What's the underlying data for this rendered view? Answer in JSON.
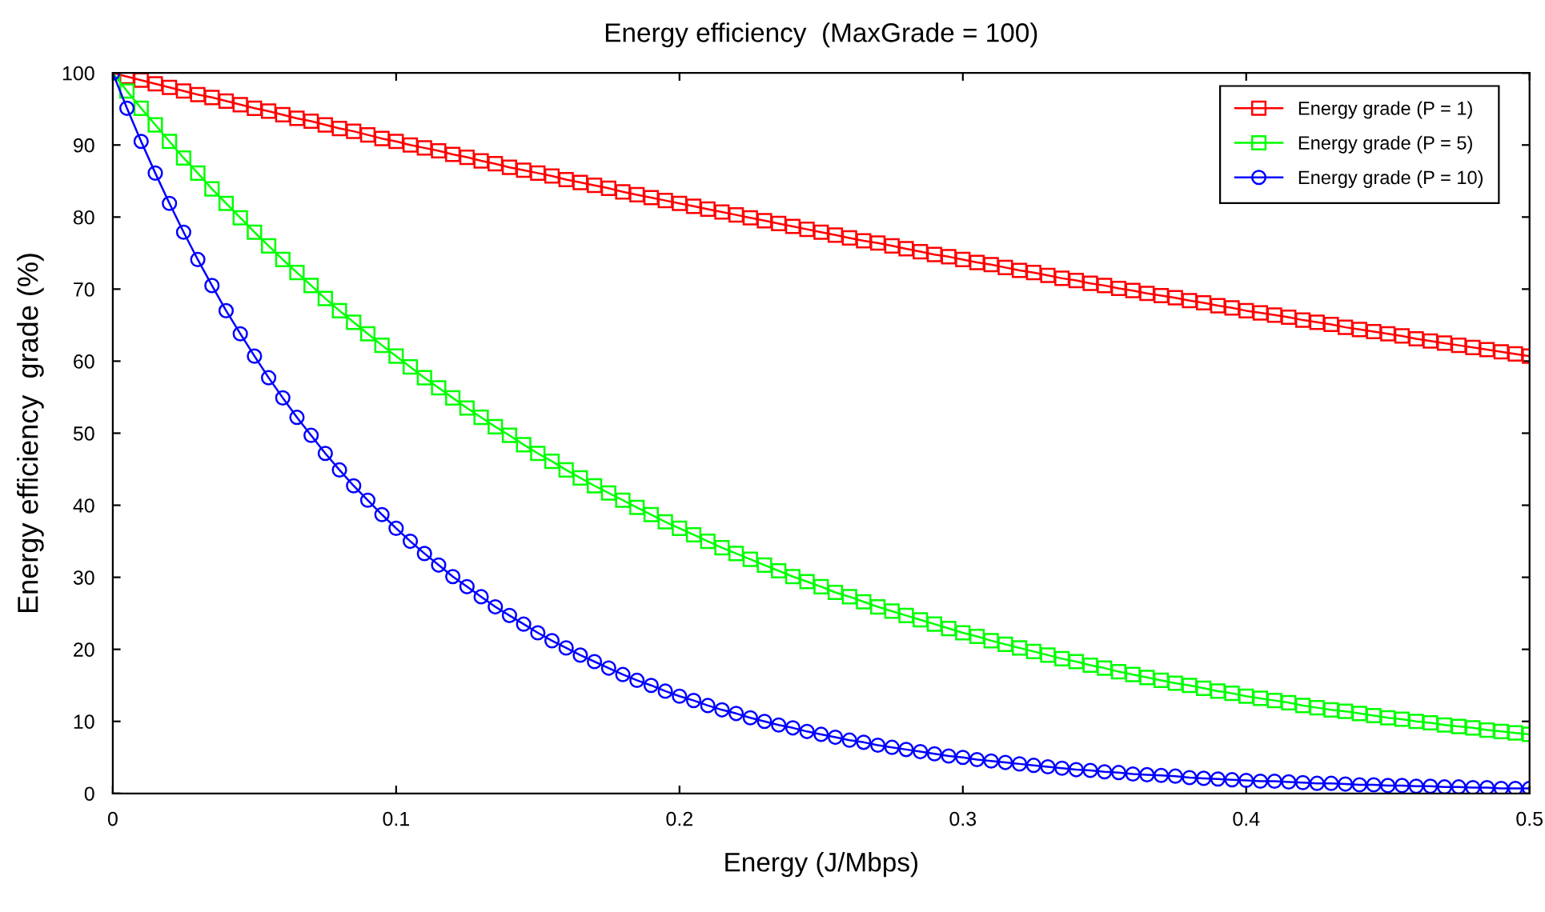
{
  "chart_data": {
    "type": "line",
    "title": "Energy efficiency  (MaxGrade = 100)",
    "xlabel": "Energy (J/Mbps)",
    "ylabel": "Energy efficiency  grade (%)",
    "x": [
      0,
      0.005,
      0.01,
      0.015,
      0.02,
      0.025,
      0.03,
      0.035,
      0.04,
      0.045,
      0.05,
      0.055,
      0.06,
      0.065,
      0.07,
      0.075,
      0.08,
      0.085,
      0.09,
      0.095,
      0.1,
      0.105,
      0.11,
      0.115,
      0.12,
      0.125,
      0.13,
      0.135,
      0.14,
      0.145,
      0.15,
      0.155,
      0.16,
      0.165,
      0.17,
      0.175,
      0.18,
      0.185,
      0.19,
      0.195,
      0.2,
      0.205,
      0.21,
      0.215,
      0.22,
      0.225,
      0.23,
      0.235,
      0.24,
      0.245,
      0.25,
      0.255,
      0.26,
      0.265,
      0.27,
      0.275,
      0.28,
      0.285,
      0.29,
      0.295,
      0.3,
      0.305,
      0.31,
      0.315,
      0.32,
      0.325,
      0.33,
      0.335,
      0.34,
      0.345,
      0.35,
      0.355,
      0.36,
      0.365,
      0.37,
      0.375,
      0.38,
      0.385,
      0.39,
      0.395,
      0.4,
      0.405,
      0.41,
      0.415,
      0.42,
      0.425,
      0.43,
      0.435,
      0.44,
      0.445,
      0.45,
      0.455,
      0.46,
      0.465,
      0.47,
      0.475,
      0.48,
      0.485,
      0.49,
      0.495,
      0.5
    ],
    "series": [
      {
        "name": "Energy grade (P = 1)",
        "color": "#ff0000",
        "marker": "square",
        "values": [
          100,
          99.5,
          99.0,
          98.5,
          98.0,
          97.5,
          97.0,
          96.6,
          96.1,
          95.6,
          95.1,
          94.7,
          94.2,
          93.7,
          93.3,
          92.8,
          92.3,
          91.9,
          91.4,
          90.9,
          90.5,
          90.0,
          89.6,
          89.2,
          88.7,
          88.3,
          87.8,
          87.4,
          86.9,
          86.5,
          86.1,
          85.7,
          85.2,
          84.8,
          84.4,
          84.0,
          83.5,
          83.1,
          82.7,
          82.3,
          81.9,
          81.5,
          81.1,
          80.7,
          80.3,
          79.9,
          79.5,
          79.1,
          78.7,
          78.3,
          77.9,
          77.5,
          77.1,
          76.7,
          76.4,
          76.0,
          75.6,
          75.2,
          74.8,
          74.5,
          74.1,
          73.7,
          73.4,
          73.0,
          72.6,
          72.3,
          71.9,
          71.5,
          71.2,
          70.8,
          70.5,
          70.1,
          69.8,
          69.4,
          69.1,
          68.8,
          68.4,
          68.1,
          67.7,
          67.4,
          67.0,
          66.7,
          66.4,
          66.1,
          65.7,
          65.4,
          65.1,
          64.7,
          64.4,
          64.1,
          63.8,
          63.5,
          63.1,
          62.8,
          62.5,
          62.2,
          61.9,
          61.6,
          61.3,
          61.0,
          60.7
        ]
      },
      {
        "name": "Energy grade (P = 5)",
        "color": "#00ff00",
        "marker": "square",
        "values": [
          100,
          97.5,
          95.1,
          92.8,
          90.5,
          88.2,
          86.1,
          83.9,
          81.9,
          79.9,
          77.9,
          76.0,
          74.1,
          72.3,
          70.5,
          68.7,
          67.0,
          65.4,
          63.8,
          62.2,
          60.7,
          59.2,
          57.7,
          56.3,
          54.9,
          53.5,
          52.2,
          50.9,
          49.7,
          48.4,
          47.2,
          46.1,
          44.9,
          43.8,
          42.7,
          41.7,
          40.7,
          39.7,
          38.7,
          37.7,
          36.8,
          35.9,
          35.0,
          34.1,
          33.3,
          32.5,
          31.7,
          30.9,
          30.1,
          29.4,
          28.7,
          27.9,
          27.3,
          26.6,
          25.9,
          25.3,
          24.7,
          24.1,
          23.5,
          22.9,
          22.3,
          21.8,
          21.2,
          20.7,
          20.2,
          19.7,
          19.2,
          18.7,
          18.3,
          17.8,
          17.4,
          16.9,
          16.5,
          16.1,
          15.7,
          15.3,
          15.0,
          14.6,
          14.2,
          13.9,
          13.5,
          13.2,
          12.9,
          12.6,
          12.2,
          11.9,
          11.6,
          11.4,
          11.1,
          10.8,
          10.5,
          10.3,
          10.0,
          9.8,
          9.5,
          9.3,
          9.1,
          8.8,
          8.6,
          8.4,
          8.2
        ]
      },
      {
        "name": "Energy grade (P = 10)",
        "color": "#0000ff",
        "marker": "circle",
        "values": [
          100,
          95.1,
          90.5,
          86.1,
          81.9,
          77.9,
          74.1,
          70.5,
          67.0,
          63.8,
          60.7,
          57.7,
          54.9,
          52.2,
          49.7,
          47.2,
          44.9,
          42.7,
          40.7,
          38.7,
          36.8,
          35.0,
          33.3,
          31.7,
          30.1,
          28.7,
          27.3,
          25.9,
          24.7,
          23.5,
          22.3,
          21.2,
          20.2,
          19.2,
          18.3,
          17.4,
          16.5,
          15.7,
          15.0,
          14.2,
          13.5,
          12.9,
          12.2,
          11.6,
          11.1,
          10.5,
          10.0,
          9.5,
          9.1,
          8.6,
          8.2,
          7.8,
          7.4,
          7.1,
          6.7,
          6.4,
          6.1,
          5.8,
          5.5,
          5.2,
          5.0,
          4.7,
          4.5,
          4.3,
          4.1,
          3.9,
          3.7,
          3.5,
          3.3,
          3.2,
          3.0,
          2.9,
          2.7,
          2.6,
          2.5,
          2.4,
          2.2,
          2.1,
          2.0,
          1.9,
          1.8,
          1.7,
          1.7,
          1.6,
          1.5,
          1.4,
          1.4,
          1.3,
          1.2,
          1.2,
          1.1,
          1.1,
          1.0,
          1.0,
          0.9,
          0.9,
          0.8,
          0.8,
          0.7,
          0.7,
          0.7
        ]
      }
    ],
    "xlim": [
      0,
      0.5
    ],
    "xticks": [
      0,
      0.1,
      0.2,
      0.3,
      0.4,
      0.5
    ],
    "ylim": [
      0,
      100
    ],
    "yticks": [
      0,
      10,
      20,
      30,
      40,
      50,
      60,
      70,
      80,
      90,
      100
    ],
    "grid": false,
    "legend": "top right",
    "line_style": "solid"
  }
}
